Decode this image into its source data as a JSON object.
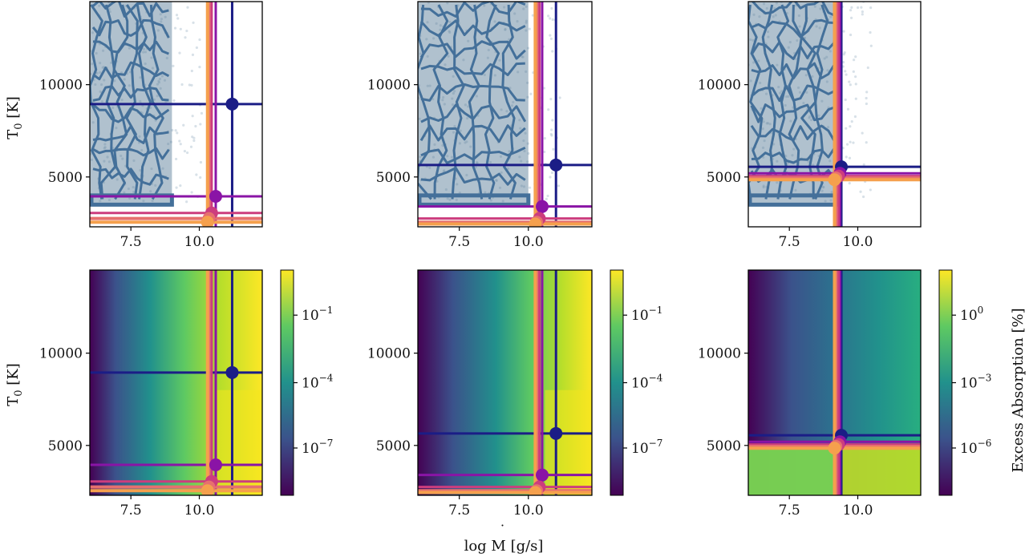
{
  "figure": {
    "ylabel_text": "T",
    "ylabel_sub": "0",
    "ylabel_unit": " [K]",
    "xlabel_main": "log ",
    "xlabel_var": "M",
    "xlabel_unit": " [g/s]",
    "colorbar_label": "Excess Absorption [%]"
  },
  "colors": {
    "kde_fill": "#4f7592",
    "kde_points": "#a9bdcc",
    "contour": "#44709a",
    "lines": [
      "#1b1d86",
      "#8a14a6",
      "#cc3d7e",
      "#e6706e",
      "#f5a04d"
    ]
  },
  "chart_data": [
    {
      "type": "scatter",
      "panel": "top-left",
      "xlim": [
        6.0,
        12.3
      ],
      "ylim": [
        2300,
        14500
      ],
      "xticks": [
        "7.5",
        "10.0"
      ],
      "yticks": [
        "5000",
        "10000"
      ],
      "ylabel": "T0 [K]",
      "kde_xmax": 9.0,
      "markers": [
        {
          "x": 11.2,
          "y": 8950
        },
        {
          "x": 10.6,
          "y": 3950
        },
        {
          "x": 10.45,
          "y": 3050
        },
        {
          "x": 10.35,
          "y": 2750
        },
        {
          "x": 10.3,
          "y": 2550
        }
      ]
    },
    {
      "type": "scatter",
      "panel": "top-middle",
      "xlim": [
        6.0,
        12.3
      ],
      "ylim": [
        2300,
        14500
      ],
      "xticks": [
        "7.5",
        "10.0"
      ],
      "yticks": [
        "5000",
        "10000"
      ],
      "ylabel": "",
      "kde_xmax": 10.0,
      "markers": [
        {
          "x": 11.0,
          "y": 5650
        },
        {
          "x": 10.5,
          "y": 3400
        },
        {
          "x": 10.4,
          "y": 2750
        },
        {
          "x": 10.3,
          "y": 2550
        },
        {
          "x": 10.25,
          "y": 2450
        }
      ]
    },
    {
      "type": "scatter",
      "panel": "top-right",
      "xlim": [
        6.0,
        12.3
      ],
      "ylim": [
        2300,
        14500
      ],
      "xticks": [
        "7.5",
        "10.0"
      ],
      "yticks": [
        "5000",
        "10000"
      ],
      "ylabel": "",
      "kde_xmax": 9.3,
      "markers": [
        {
          "x": 9.4,
          "y": 5550
        },
        {
          "x": 9.35,
          "y": 5200
        },
        {
          "x": 9.3,
          "y": 5050
        },
        {
          "x": 9.2,
          "y": 4950
        },
        {
          "x": 9.15,
          "y": 4850
        }
      ]
    },
    {
      "type": "heatmap",
      "panel": "bottom-left",
      "xlim": [
        6.0,
        12.3
      ],
      "ylim": [
        2300,
        14500
      ],
      "xticks": [
        "7.5",
        "10.0"
      ],
      "yticks": [
        "5000",
        "10000"
      ],
      "ylabel": "T0 [K]",
      "colorbar": {
        "ticks": [
          "10",
          "10",
          "10"
        ],
        "exponents": [
          "−1",
          "−4",
          "−7"
        ],
        "label": ""
      },
      "markers": [
        {
          "x": 11.2,
          "y": 8950
        },
        {
          "x": 10.6,
          "y": 3950
        },
        {
          "x": 10.45,
          "y": 3050
        },
        {
          "x": 10.35,
          "y": 2750
        },
        {
          "x": 10.3,
          "y": 2550
        }
      ]
    },
    {
      "type": "heatmap",
      "panel": "bottom-middle",
      "xlim": [
        6.0,
        12.3
      ],
      "ylim": [
        2300,
        14500
      ],
      "xticks": [
        "7.5",
        "10.0"
      ],
      "yticks": [
        "5000",
        "10000"
      ],
      "ylabel": "",
      "xlabel": "log M [g/s]",
      "colorbar": {
        "ticks": [
          "10",
          "10",
          "10"
        ],
        "exponents": [
          "−1",
          "−4",
          "−7"
        ],
        "label": ""
      },
      "markers": [
        {
          "x": 11.0,
          "y": 5650
        },
        {
          "x": 10.5,
          "y": 3400
        },
        {
          "x": 10.4,
          "y": 2750
        },
        {
          "x": 10.3,
          "y": 2550
        },
        {
          "x": 10.25,
          "y": 2450
        }
      ]
    },
    {
      "type": "heatmap",
      "panel": "bottom-right",
      "xlim": [
        6.0,
        12.3
      ],
      "ylim": [
        2300,
        14500
      ],
      "xticks": [
        "7.5",
        "10.0"
      ],
      "yticks": [
        "5000",
        "10000"
      ],
      "ylabel": "",
      "colorbar": {
        "ticks": [
          "10",
          "10",
          "10"
        ],
        "exponents": [
          "0",
          "−3",
          "−6"
        ],
        "label": "Excess Absorption [%]"
      },
      "markers": [
        {
          "x": 9.4,
          "y": 5550
        },
        {
          "x": 9.35,
          "y": 5200
        },
        {
          "x": 9.3,
          "y": 5050
        },
        {
          "x": 9.2,
          "y": 4950
        },
        {
          "x": 9.15,
          "y": 4850
        }
      ]
    }
  ]
}
